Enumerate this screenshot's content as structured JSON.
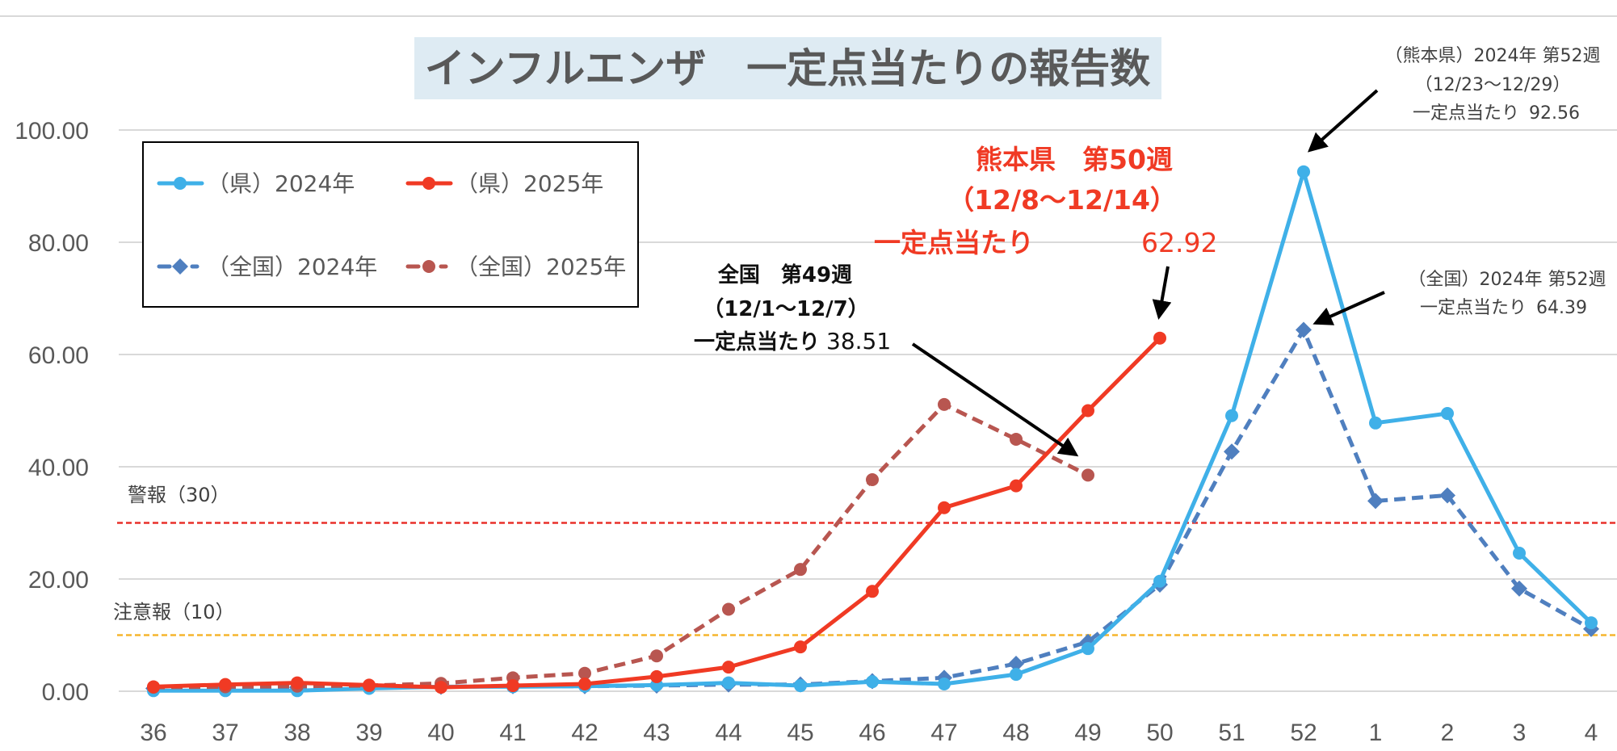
{
  "chart_data": {
    "type": "line",
    "title": "インフルエンザ　一定点当たりの報告数",
    "categories": [
      "36",
      "37",
      "38",
      "39",
      "40",
      "41",
      "42",
      "43",
      "44",
      "45",
      "46",
      "47",
      "48",
      "49",
      "50",
      "51",
      "52",
      "1",
      "2",
      "3",
      "4"
    ],
    "ylim": [
      0,
      100
    ],
    "yticks": [
      "0.00",
      "20.00",
      "40.00",
      "60.00",
      "80.00",
      "100.00"
    ],
    "ytick_values": [
      0,
      20,
      40,
      60,
      80,
      100
    ],
    "grid": true,
    "legend_position": "top-left",
    "series": [
      {
        "name": "（県）2024年",
        "color": "#3fb0e8",
        "style": "solid",
        "marker": "circle",
        "values": [
          0.1,
          0.1,
          0.1,
          0.5,
          0.8,
          0.8,
          0.9,
          1.1,
          1.5,
          1.0,
          1.7,
          1.3,
          3.0,
          7.6,
          19.6,
          49.1,
          92.56,
          47.8,
          49.5,
          24.6,
          12.2
        ]
      },
      {
        "name": "（県）2025年",
        "color": "#f03a24",
        "style": "solid",
        "marker": "circle",
        "values": [
          0.8,
          1.2,
          1.5,
          1.1,
          0.7,
          1.0,
          1.3,
          2.6,
          4.3,
          7.9,
          17.8,
          32.7,
          36.6,
          50.0,
          62.92,
          null,
          null,
          null,
          null,
          null,
          null
        ]
      },
      {
        "name": "（全国）2024年",
        "color": "#4f7fbf",
        "style": "dashed",
        "marker": "diamond",
        "values": [
          0.5,
          0.6,
          0.7,
          0.8,
          0.8,
          0.9,
          0.9,
          1.0,
          1.2,
          1.2,
          1.8,
          2.4,
          4.9,
          8.8,
          19.0,
          42.7,
          64.39,
          33.9,
          34.9,
          18.3,
          11.1
        ]
      },
      {
        "name": "（全国）2025年",
        "color": "#b85650",
        "style": "dashed",
        "marker": "circle",
        "values": [
          0.7,
          0.8,
          0.9,
          1.0,
          1.4,
          2.4,
          3.2,
          6.3,
          14.6,
          21.7,
          37.7,
          51.1,
          44.9,
          38.51,
          null,
          null,
          null,
          null,
          null,
          null,
          null
        ]
      }
    ],
    "thresholds": [
      {
        "label": "警報（30）",
        "value": 30,
        "color": "#e8302a"
      },
      {
        "label": "注意報（10）",
        "value": 10,
        "color": "#f5b52e"
      }
    ],
    "annotations": [
      {
        "id": "pref2025",
        "lines": [
          "熊本県　第50週",
          "（12/8～12/14）",
          "一定点当たり"
        ],
        "value": "62.92",
        "target_category": "50",
        "target_value": 62.92
      },
      {
        "id": "nat2025",
        "lines": [
          "全国　第49週",
          "（12/1～12/7）",
          "一定点当たり"
        ],
        "value": "38.51",
        "target_category": "49",
        "target_value": 38.51
      },
      {
        "id": "pref2024",
        "lines": [
          "（熊本県）2024年 第52週",
          "（12/23～12/29）",
          "一定点当たり"
        ],
        "value": "92.56",
        "target_category": "52",
        "target_value": 92.56
      },
      {
        "id": "nat2024",
        "lines": [
          "（全国）2024年 第52週",
          "一定点当たり"
        ],
        "value": "64.39",
        "target_category": "52",
        "target_value": 64.39
      }
    ]
  }
}
